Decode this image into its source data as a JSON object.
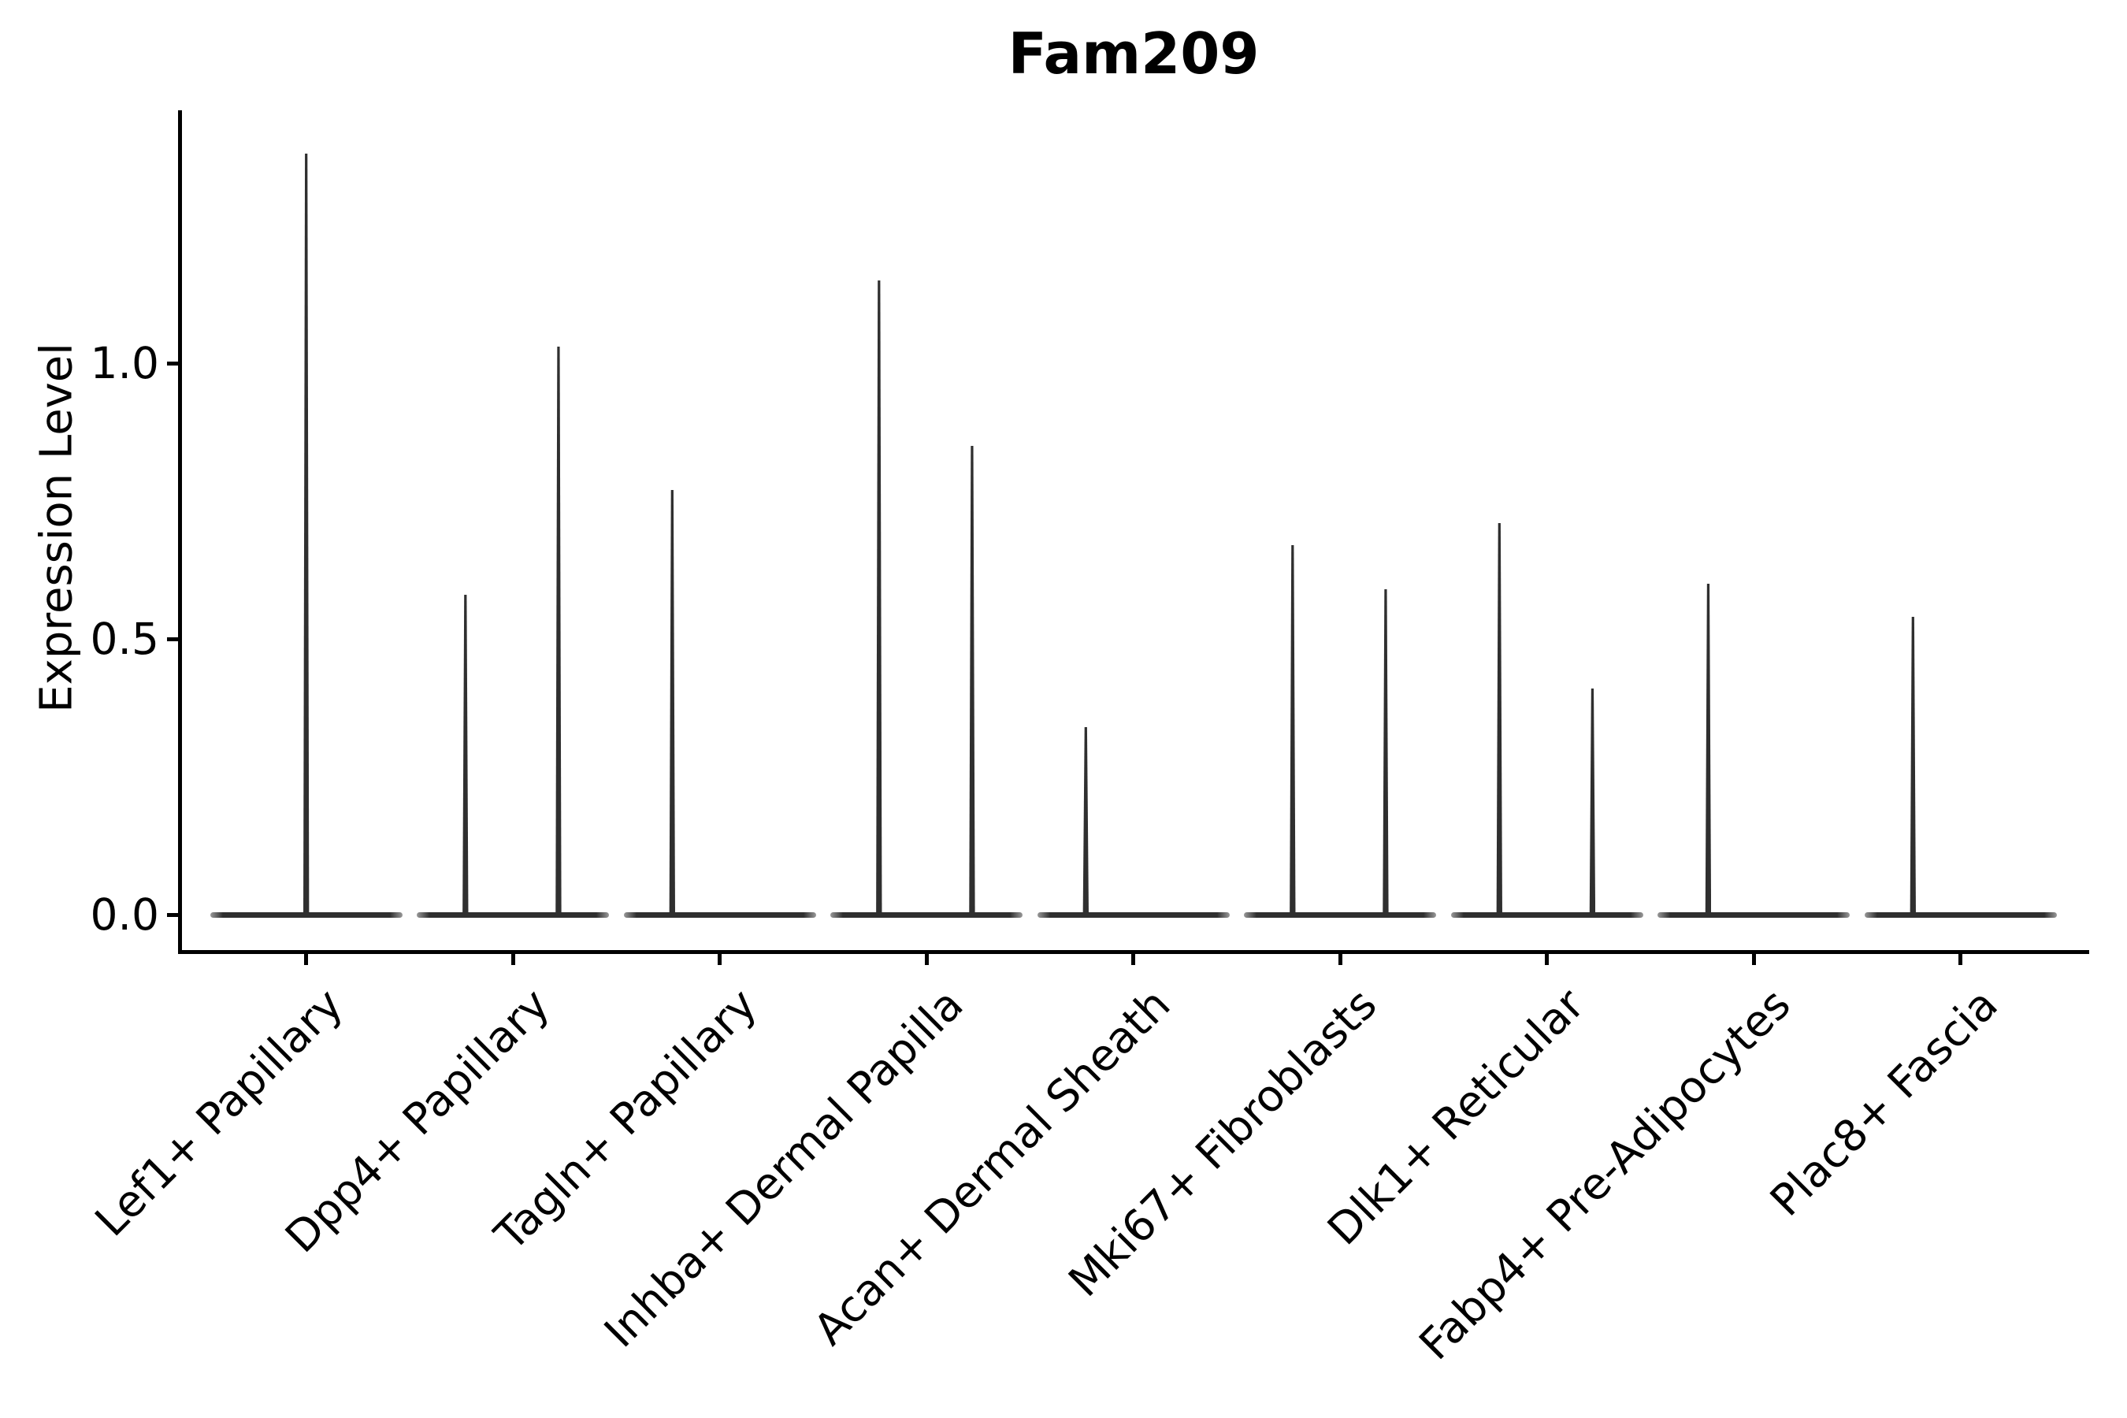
{
  "title": "Fam209",
  "y_axis": {
    "label": "Expression Level",
    "ticks": [
      "0.0",
      "0.5",
      "1.0"
    ],
    "tick_values": [
      0.0,
      0.5,
      1.0
    ]
  },
  "x_axis": {
    "categories": [
      "Lef1+ Papillary",
      "Dpp4+ Papillary",
      "Tagln+ Papillary",
      "Inhba+ Dermal Papilla",
      "Acan+ Dermal Sheath",
      "Mki67+ Fibroblasts",
      "Dlk1+ Reticular",
      "Fabp4+ Pre-Adipocytes",
      "Plac8+ Fascia"
    ]
  },
  "colors": {
    "violin": "#2f2f2f",
    "axis": "#000000",
    "text": "#000000",
    "background": "#ffffff"
  },
  "chart_data": {
    "type": "violin",
    "title": "Fam209",
    "xlabel": "",
    "ylabel": "Expression Level",
    "ylim": [
      0,
      1.45
    ],
    "yticks": [
      0.0,
      0.5,
      1.0
    ],
    "grid": false,
    "legend": "none",
    "categories": [
      "Lef1+ Papillary",
      "Dpp4+ Papillary",
      "Tagln+ Papillary",
      "Inhba+ Dermal Papilla",
      "Acan+ Dermal Sheath",
      "Mki67+ Fibroblasts",
      "Dlk1+ Reticular",
      "Fabp4+ Pre-Adipocytes",
      "Plac8+ Fascia"
    ],
    "groups": [
      {
        "category": "Lef1+ Papillary",
        "baseline_value": 0.0,
        "peaks": [
          {
            "offset": 0.0,
            "value": 1.38
          }
        ]
      },
      {
        "category": "Dpp4+ Papillary",
        "baseline_value": 0.0,
        "peaks": [
          {
            "offset": -0.23,
            "value": 0.58
          },
          {
            "offset": 0.22,
            "value": 1.03
          }
        ]
      },
      {
        "category": "Tagln+ Papillary",
        "baseline_value": 0.0,
        "peaks": [
          {
            "offset": -0.23,
            "value": 0.77
          }
        ]
      },
      {
        "category": "Inhba+ Dermal Papilla",
        "baseline_value": 0.0,
        "peaks": [
          {
            "offset": -0.23,
            "value": 1.15
          },
          {
            "offset": 0.22,
            "value": 0.85
          }
        ]
      },
      {
        "category": "Acan+ Dermal Sheath",
        "baseline_value": 0.0,
        "peaks": [
          {
            "offset": -0.23,
            "value": 0.34
          }
        ]
      },
      {
        "category": "Mki67+ Fibroblasts",
        "baseline_value": 0.0,
        "peaks": [
          {
            "offset": -0.23,
            "value": 0.67
          },
          {
            "offset": 0.22,
            "value": 0.59
          }
        ]
      },
      {
        "category": "Dlk1+ Reticular",
        "baseline_value": 0.0,
        "peaks": [
          {
            "offset": -0.23,
            "value": 0.71
          },
          {
            "offset": 0.22,
            "value": 0.41
          }
        ]
      },
      {
        "category": "Fabp4+ Pre-Adipocytes",
        "baseline_value": 0.0,
        "peaks": [
          {
            "offset": -0.22,
            "value": 0.6
          }
        ]
      },
      {
        "category": "Plac8+ Fascia",
        "baseline_value": 0.0,
        "peaks": [
          {
            "offset": -0.23,
            "value": 0.54
          }
        ]
      }
    ]
  }
}
